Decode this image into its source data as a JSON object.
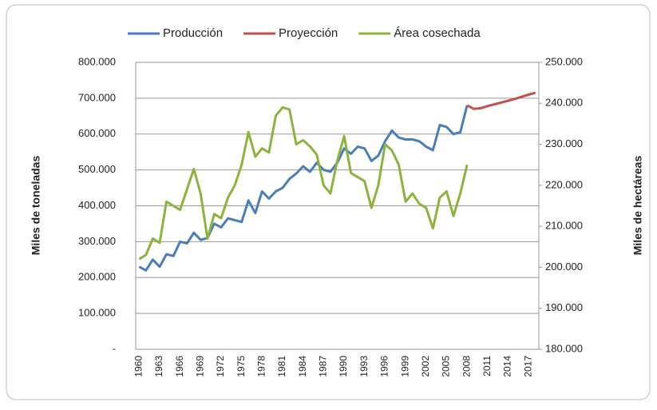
{
  "chart_data": {
    "type": "line",
    "categories": [
      "1960",
      null,
      null,
      "1963",
      null,
      null,
      "1966",
      null,
      null,
      "1969",
      null,
      null,
      "1972",
      null,
      null,
      "1975",
      null,
      null,
      "1978",
      null,
      null,
      "1981",
      null,
      null,
      "1984",
      null,
      null,
      "1987",
      null,
      null,
      "1990",
      null,
      null,
      "1993",
      null,
      null,
      "1996",
      null,
      null,
      "1999",
      null,
      null,
      "2002",
      null,
      null,
      "2005",
      null,
      null,
      "2008",
      null,
      null,
      "2011",
      null,
      null,
      "2014",
      null,
      null,
      "2017",
      null
    ],
    "series": [
      {
        "name": "Producción",
        "color": "#4a7ebb",
        "values": [
          230000,
          220000,
          250000,
          230000,
          265000,
          260000,
          300000,
          295000,
          325000,
          305000,
          310000,
          350000,
          340000,
          365000,
          360000,
          355000,
          415000,
          380000,
          440000,
          420000,
          440000,
          450000,
          475000,
          490000,
          510000,
          495000,
          520000,
          500000,
          495000,
          520000,
          560000,
          545000,
          565000,
          560000,
          525000,
          540000,
          580000,
          610000,
          590000,
          585000,
          585000,
          580000,
          565000,
          555000,
          625000,
          620000,
          600000,
          605000,
          680000,
          null,
          null,
          null,
          null,
          null,
          null,
          null,
          null,
          null,
          null
        ]
      },
      {
        "name": "Proyección",
        "color": "#c0504d",
        "values": [
          null,
          null,
          null,
          null,
          null,
          null,
          null,
          null,
          null,
          null,
          null,
          null,
          null,
          null,
          null,
          null,
          null,
          null,
          null,
          null,
          null,
          null,
          null,
          null,
          null,
          null,
          null,
          null,
          null,
          null,
          null,
          null,
          null,
          null,
          null,
          null,
          null,
          null,
          null,
          null,
          null,
          null,
          null,
          null,
          null,
          null,
          null,
          null,
          680000,
          670000,
          672000,
          678000,
          683000,
          688000,
          693000,
          698000,
          704000,
          710000,
          715000
        ]
      },
      {
        "name": "Área cosechada",
        "color": "#8cb43c",
        "axis": "y2",
        "values": [
          202000,
          203000,
          207000,
          206000,
          216000,
          215000,
          214000,
          219000,
          224000,
          218000,
          207000,
          213000,
          212000,
          217000,
          220000,
          225000,
          233000,
          227000,
          229000,
          228000,
          237000,
          239000,
          238500,
          230000,
          231000,
          229500,
          227500,
          220000,
          218000,
          226000,
          232000,
          223000,
          222000,
          221000,
          214500,
          220000,
          230000,
          228500,
          225000,
          216000,
          218000,
          215500,
          214500,
          209500,
          217000,
          218500,
          212500,
          218000,
          225000,
          null,
          null,
          null,
          null,
          null,
          null,
          null,
          null,
          null,
          null
        ]
      }
    ],
    "y_label": "Miles de toneladas",
    "y2_label": "Miles de hectáreas",
    "ylim": [
      0,
      800000
    ],
    "yticks": [
      {
        "value": 0,
        "label": "-"
      },
      {
        "value": 100000,
        "label": "100.000"
      },
      {
        "value": 200000,
        "label": "200.000"
      },
      {
        "value": 300000,
        "label": "300.000"
      },
      {
        "value": 400000,
        "label": "400.000"
      },
      {
        "value": 500000,
        "label": "500.000"
      },
      {
        "value": 600000,
        "label": "600.000"
      },
      {
        "value": 700000,
        "label": "700.000"
      },
      {
        "value": 800000,
        "label": "800.000"
      }
    ],
    "y2lim": [
      180000,
      250000
    ],
    "y2ticks": [
      {
        "value": 180000,
        "label": "180.000"
      },
      {
        "value": 190000,
        "label": "190.000"
      },
      {
        "value": 200000,
        "label": "200.000"
      },
      {
        "value": 210000,
        "label": "210.000"
      },
      {
        "value": 220000,
        "label": "220.000"
      },
      {
        "value": 230000,
        "label": "230.000"
      },
      {
        "value": 240000,
        "label": "240.000"
      },
      {
        "value": 250000,
        "label": "250.000"
      }
    ],
    "grid": true,
    "legend": "top"
  }
}
